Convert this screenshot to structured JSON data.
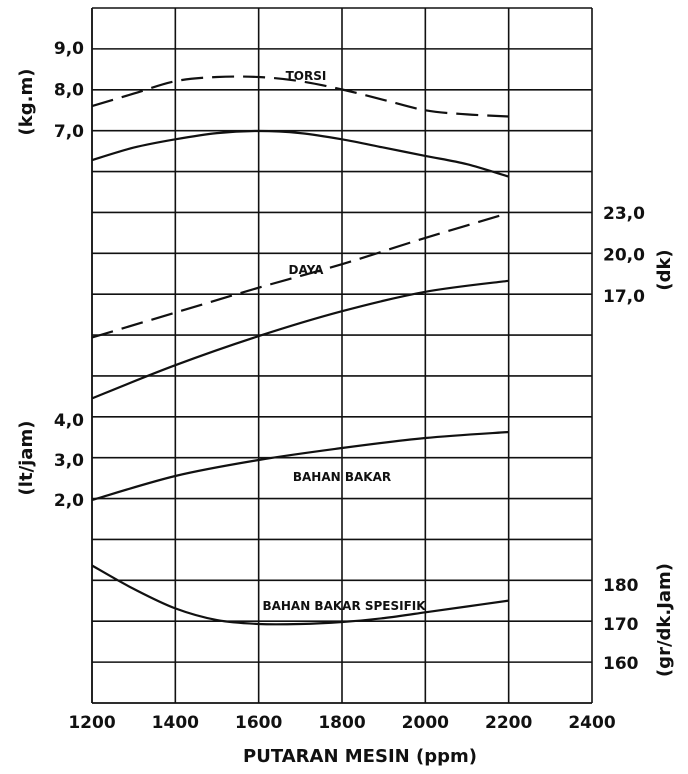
{
  "chart_data": {
    "type": "line",
    "xlabel": "PUTARAN MESIN (ppm)",
    "x_ticks": [
      "1200",
      "1400",
      "1600",
      "1800",
      "2000",
      "2200",
      "2400"
    ],
    "xlim": [
      1200,
      2400
    ],
    "grid": true,
    "axes": {
      "torsi": {
        "label": "(kg.m)",
        "side": "left",
        "ticks": [
          "9,0",
          "8,0",
          "7,0"
        ],
        "tick_values": [
          9.0,
          8.0,
          7.0
        ]
      },
      "daya": {
        "label": "(dk)",
        "side": "right",
        "ticks": [
          "23,0",
          "20,0",
          "17,0"
        ],
        "tick_values": [
          23.0,
          20.0,
          17.0
        ]
      },
      "bahan_bakar": {
        "label": "(lt/jam)",
        "side": "left",
        "ticks": [
          "4,0",
          "3,0",
          "2,0"
        ],
        "tick_values": [
          4.0,
          3.0,
          2.0
        ]
      },
      "spesifik": {
        "label": "(gr/dk.Jam)",
        "side": "right",
        "ticks": [
          "180",
          "170",
          "160"
        ],
        "tick_values": [
          180,
          170,
          160
        ]
      }
    },
    "curve_labels": {
      "torsi": "TORSI",
      "daya": "DAYA",
      "bahan_bakar": "BAHAN BAKAR",
      "spesifik": "BAHAN BAKAR SPESIFIK"
    },
    "series": [
      {
        "group": "torsi",
        "style": "dashed",
        "axis": "torsi",
        "x": [
          1200,
          1300,
          1400,
          1500,
          1600,
          1700,
          1800,
          1900,
          2000,
          2100,
          2200
        ],
        "y": [
          7.6,
          7.9,
          8.2,
          8.3,
          8.3,
          8.2,
          8.0,
          7.75,
          7.5,
          7.4,
          7.35
        ]
      },
      {
        "group": "torsi",
        "style": "solid",
        "axis": "torsi",
        "x": [
          1200,
          1300,
          1400,
          1500,
          1600,
          1700,
          1800,
          1900,
          2000,
          2100,
          2200
        ],
        "y": [
          6.3,
          6.6,
          6.8,
          6.95,
          7.0,
          6.95,
          6.8,
          6.6,
          6.4,
          6.2,
          5.9
        ]
      },
      {
        "group": "daya",
        "style": "dashed",
        "axis": "daya",
        "x": [
          1200,
          1400,
          1600,
          1800,
          2000,
          2200
        ],
        "y": [
          14.0,
          15.8,
          17.6,
          19.3,
          21.2,
          23.0
        ]
      },
      {
        "group": "daya",
        "style": "solid",
        "axis": "daya",
        "x": [
          1200,
          1400,
          1600,
          1800,
          2000,
          2200
        ],
        "y": [
          9.6,
          12.0,
          14.1,
          15.9,
          17.3,
          18.1
        ]
      },
      {
        "group": "bahan_bakar",
        "style": "solid",
        "axis": "bahan_bakar",
        "x": [
          1200,
          1400,
          1600,
          1800,
          2000,
          2200
        ],
        "y": [
          2.0,
          2.6,
          3.0,
          3.3,
          3.55,
          3.7
        ]
      },
      {
        "group": "spesifik",
        "style": "solid",
        "axis": "spesifik",
        "x": [
          1200,
          1300,
          1400,
          1500,
          1600,
          1700,
          1800,
          1900,
          2000,
          2100,
          2200
        ],
        "y": [
          185,
          179,
          174,
          171,
          170,
          170,
          170.5,
          171.5,
          173,
          174.5,
          176
        ]
      }
    ]
  }
}
